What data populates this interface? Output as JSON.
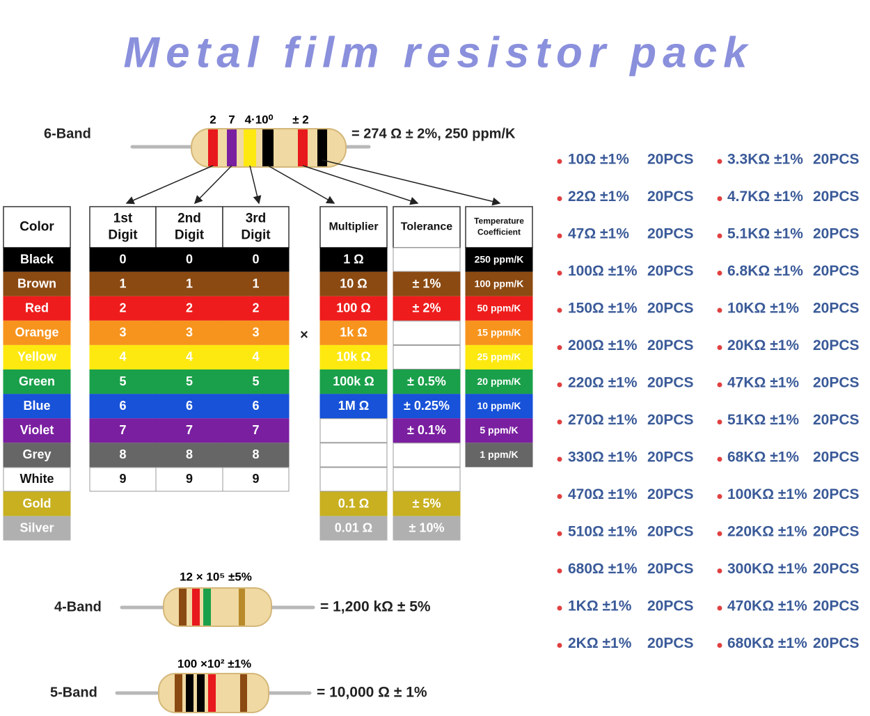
{
  "title": "Metal film resistor pack",
  "six_band": {
    "label": "6-Band",
    "band_labels": [
      "2",
      "7",
      "4·10⁰",
      "± 2"
    ],
    "result": "= 274 Ω ± 2%, 250 ppm/K"
  },
  "table": {
    "headers": [
      [
        "Color"
      ],
      [
        "1st",
        "Digit"
      ],
      [
        "2nd",
        "Digit"
      ],
      [
        "3rd",
        "Digit"
      ],
      [
        "Multiplier"
      ],
      [
        "Tolerance"
      ],
      [
        "Temperature",
        "Coefficient"
      ]
    ],
    "times_sign": "×",
    "rows": [
      [
        "Black",
        0,
        0,
        0,
        "1 Ω",
        null,
        "250 ppm/K"
      ],
      [
        "Brown",
        1,
        1,
        1,
        "10 Ω",
        "± 1%",
        "100 ppm/K"
      ],
      [
        "Red",
        2,
        2,
        2,
        "100 Ω",
        "± 2%",
        "50 ppm/K"
      ],
      [
        "Orange",
        3,
        3,
        3,
        "1k Ω",
        null,
        "15 ppm/K"
      ],
      [
        "Yellow",
        4,
        4,
        4,
        "10k Ω",
        null,
        "25 ppm/K"
      ],
      [
        "Green",
        5,
        5,
        5,
        "100k Ω",
        "± 0.5%",
        "20 ppm/K"
      ],
      [
        "Blue",
        6,
        6,
        6,
        "1M Ω",
        "± 0.25%",
        "10 ppm/K"
      ],
      [
        "Violet",
        7,
        7,
        7,
        null,
        "± 0.1%",
        "5 ppm/K"
      ],
      [
        "Grey",
        8,
        8,
        8,
        null,
        null,
        "1 ppm/K"
      ],
      [
        "White",
        9,
        9,
        9,
        null,
        null,
        null
      ],
      [
        "Gold",
        null,
        null,
        null,
        "0.1 Ω",
        "± 5%",
        null
      ],
      [
        "Silver",
        null,
        null,
        null,
        "0.01 Ω",
        "± 10%",
        null
      ]
    ]
  },
  "four_band": {
    "label": "4-Band",
    "formula": "12 × 10⁵ ±5%",
    "result": "= 1,200 kΩ ± 5%"
  },
  "five_band": {
    "label": "5-Band",
    "formula": "100 ×10² ±1%",
    "result": "= 10,000 Ω ± 1%"
  },
  "pack": {
    "columns": [
      [
        {
          "value": "10Ω ±1%",
          "qty": "20PCS"
        },
        {
          "value": "22Ω ±1%",
          "qty": "20PCS"
        },
        {
          "value": "47Ω ±1%",
          "qty": "20PCS"
        },
        {
          "value": "100Ω ±1%",
          "qty": "20PCS"
        },
        {
          "value": "150Ω ±1%",
          "qty": "20PCS"
        },
        {
          "value": "200Ω ±1%",
          "qty": "20PCS"
        },
        {
          "value": "220Ω ±1%",
          "qty": "20PCS"
        },
        {
          "value": "270Ω ±1%",
          "qty": "20PCS"
        },
        {
          "value": "330Ω ±1%",
          "qty": "20PCS"
        },
        {
          "value": "470Ω ±1%",
          "qty": "20PCS"
        },
        {
          "value": "510Ω ±1%",
          "qty": "20PCS"
        },
        {
          "value": "680Ω ±1%",
          "qty": "20PCS"
        },
        {
          "value": "1KΩ ±1%",
          "qty": "20PCS"
        },
        {
          "value": "2KΩ ±1%",
          "qty": "20PCS"
        }
      ],
      [
        {
          "value": "3.3KΩ ±1%",
          "qty": "20PCS"
        },
        {
          "value": "4.7KΩ ±1%",
          "qty": "20PCS"
        },
        {
          "value": "5.1KΩ ±1%",
          "qty": "20PCS"
        },
        {
          "value": "6.8KΩ ±1%",
          "qty": "20PCS"
        },
        {
          "value": "10KΩ ±1%",
          "qty": "20PCS"
        },
        {
          "value": "20KΩ ±1%",
          "qty": "20PCS"
        },
        {
          "value": "47KΩ ±1%",
          "qty": "20PCS"
        },
        {
          "value": "51KΩ ±1%",
          "qty": "20PCS"
        },
        {
          "value": "68KΩ ±1%",
          "qty": "20PCS"
        },
        {
          "value": "100KΩ ±1%",
          "qty": "20PCS"
        },
        {
          "value": "220KΩ ±1%",
          "qty": "20PCS"
        },
        {
          "value": "300KΩ ±1%",
          "qty": "20PCS"
        },
        {
          "value": "470KΩ ±1%",
          "qty": "20PCS"
        },
        {
          "value": "680KΩ ±1%",
          "qty": "20PCS"
        }
      ]
    ]
  }
}
